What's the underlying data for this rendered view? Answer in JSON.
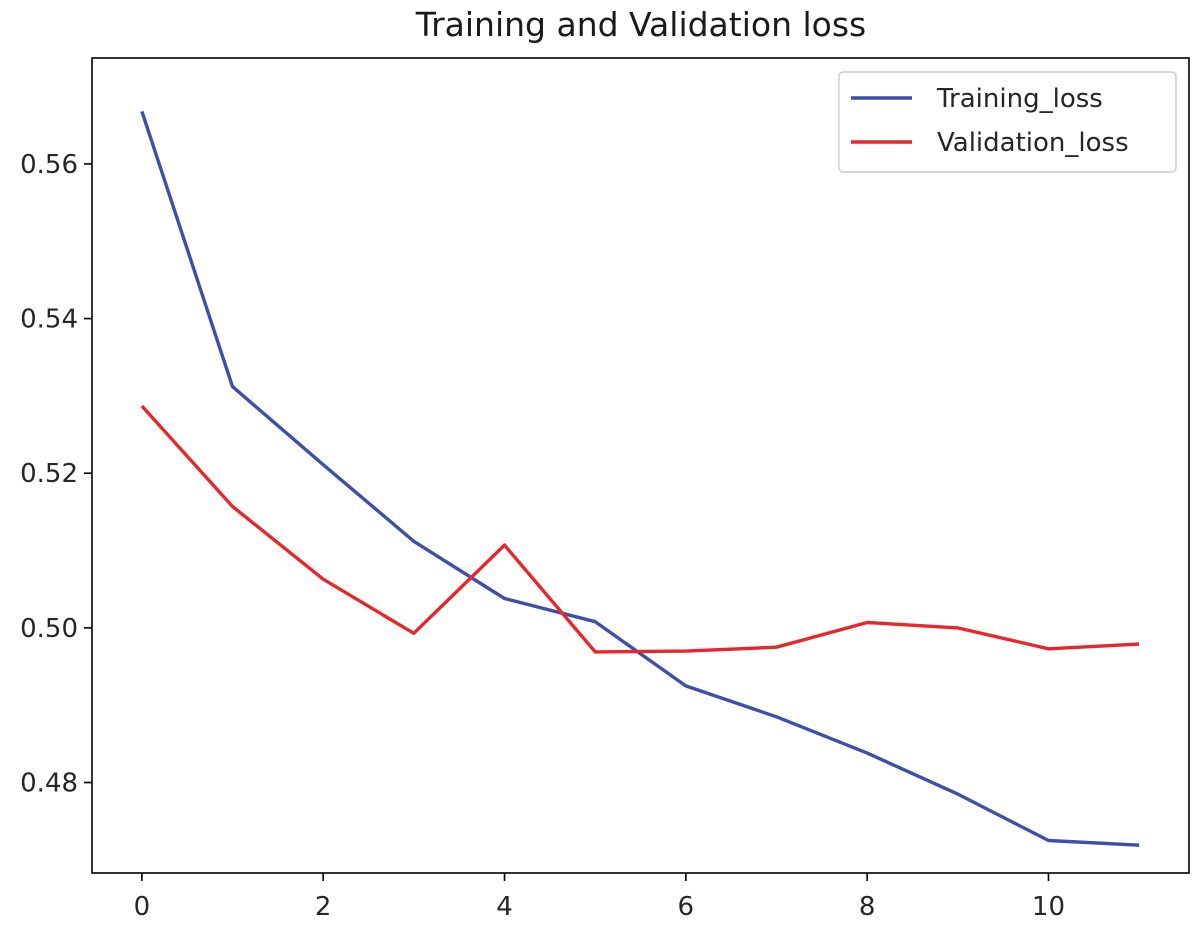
{
  "chart_data": {
    "type": "line",
    "title": "Training and Validation loss",
    "xlabel": "",
    "ylabel": "",
    "x": [
      0,
      1,
      2,
      3,
      4,
      5,
      6,
      7,
      8,
      9,
      10,
      11
    ],
    "xlim": [
      -0.55,
      11.55
    ],
    "ylim": [
      0.4683,
      0.5737
    ],
    "xticks": [
      0,
      2,
      4,
      6,
      8,
      10
    ],
    "xtick_labels": [
      "0",
      "2",
      "4",
      "6",
      "8",
      "10"
    ],
    "yticks": [
      0.48,
      0.5,
      0.52,
      0.54,
      0.56
    ],
    "ytick_labels": [
      "0.48",
      "0.50",
      "0.52",
      "0.54",
      "0.56"
    ],
    "grid": false,
    "legend_position": "top-right",
    "series": [
      {
        "name": "Training_loss",
        "color": "#3f4fa8",
        "values": [
          0.5668,
          0.5312,
          0.5211,
          0.5112,
          0.5038,
          0.5008,
          0.4925,
          0.4885,
          0.4838,
          0.4785,
          0.4725,
          0.4719
        ]
      },
      {
        "name": "Validation_loss",
        "color": "#e8262b",
        "values": [
          0.5287,
          0.5157,
          0.5063,
          0.4993,
          0.5107,
          0.4969,
          0.497,
          0.4975,
          0.5007,
          0.5,
          0.4973,
          0.4979
        ]
      }
    ]
  }
}
